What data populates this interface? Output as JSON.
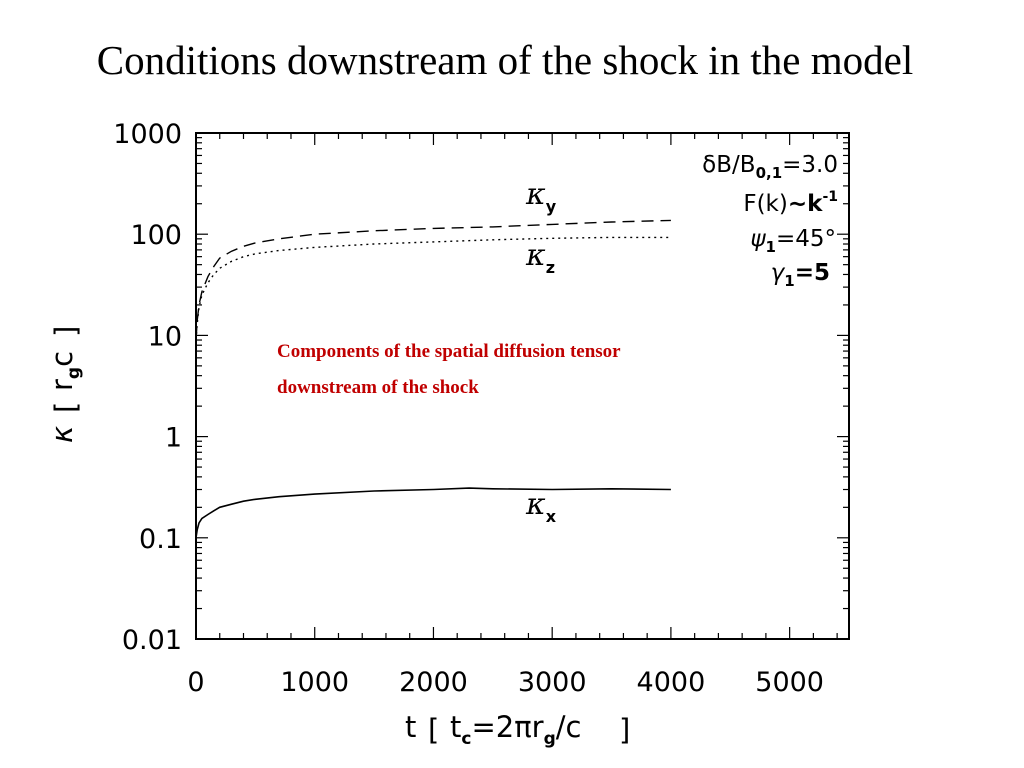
{
  "slide": {
    "title": "Conditions downstream of the shock in the model",
    "annotation": [
      "Components of the spatial diffusion tensor",
      "downstream of the shock"
    ]
  },
  "chart_data": {
    "type": "line",
    "xlabel": "t [tc=2πrg/c]",
    "ylabel": "κ [rgc]",
    "xlim": [
      0,
      5500
    ],
    "ylim": [
      0.01,
      1000
    ],
    "yscale": "log",
    "xticks": [
      "0",
      "1000",
      "2000",
      "3000",
      "4000",
      "5000"
    ],
    "yticks": [
      "0.01",
      "0.1",
      "1",
      "10",
      "100",
      "1000"
    ],
    "legend_text": {
      "line1": "δB/B",
      "line1_sub": "0,1",
      "line1_val": "=3.0",
      "line2": "F(k)",
      "line2_bold": "~k",
      "line2_sup": "-1",
      "line3": "ψ",
      "line3_sub": "1",
      "line3_val": "=45°",
      "line4": "γ",
      "line4_sub": "1",
      "line4_val": "=5"
    },
    "series": [
      {
        "name": "κy",
        "label": "κ",
        "label_sub": "y",
        "style": "dashed",
        "x": [
          0,
          10,
          25,
          50,
          100,
          150,
          200,
          300,
          400,
          500,
          700,
          1000,
          1500,
          2000,
          2500,
          3000,
          3500,
          4000
        ],
        "y": [
          9,
          14,
          20,
          27,
          38,
          48,
          58,
          68,
          76,
          82,
          90,
          100,
          108,
          114,
          118,
          125,
          132,
          137
        ]
      },
      {
        "name": "κz",
        "label": "κ",
        "label_sub": "z",
        "style": "dotted",
        "x": [
          0,
          10,
          25,
          50,
          100,
          150,
          200,
          300,
          400,
          500,
          700,
          1000,
          1500,
          2000,
          2500,
          3000,
          3500,
          4000
        ],
        "y": [
          9,
          13,
          19,
          25,
          33,
          40,
          46,
          54,
          60,
          64,
          69,
          74,
          80,
          84,
          88,
          91,
          93,
          93
        ]
      },
      {
        "name": "κx",
        "label": "κ",
        "label_sub": "x",
        "style": "solid",
        "x": [
          0,
          10,
          25,
          50,
          100,
          150,
          200,
          300,
          400,
          500,
          700,
          1000,
          1500,
          2000,
          2300,
          2500,
          3000,
          3500,
          4000
        ],
        "y": [
          0.1,
          0.12,
          0.14,
          0.155,
          0.17,
          0.185,
          0.2,
          0.215,
          0.23,
          0.24,
          0.255,
          0.27,
          0.29,
          0.3,
          0.31,
          0.305,
          0.3,
          0.305,
          0.3
        ]
      }
    ]
  }
}
